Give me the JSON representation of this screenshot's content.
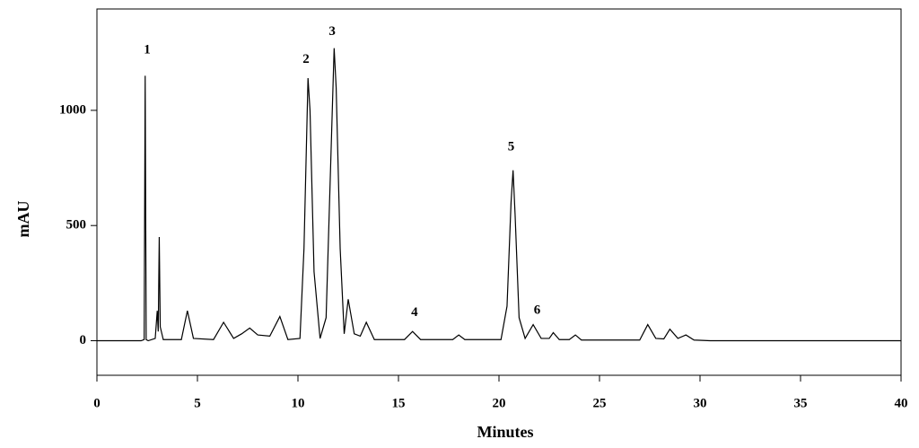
{
  "chart_data": {
    "type": "line",
    "x_label": "Minutes",
    "y_label": "mAU",
    "xlim": [
      0,
      40
    ],
    "ylim": [
      -150,
      1440
    ],
    "xticks": [
      0,
      5,
      10,
      15,
      20,
      25,
      30,
      35,
      40
    ],
    "yticks": [
      0,
      500,
      1000
    ],
    "grid": false,
    "series": [
      {
        "color": "#000000",
        "x": [
          0,
          2.2,
          2.35,
          2.4,
          2.45,
          2.55,
          2.9,
          3.0,
          3.05,
          3.1,
          3.15,
          3.3,
          4.2,
          4.5,
          4.8,
          5.8,
          6.3,
          6.8,
          7.2,
          7.6,
          8.0,
          8.6,
          9.1,
          9.5,
          10.1,
          10.3,
          10.5,
          10.6,
          10.8,
          11.1,
          11.4,
          11.8,
          11.9,
          12.1,
          12.3,
          12.5,
          12.8,
          13.1,
          13.4,
          13.8,
          15.3,
          15.7,
          16.1,
          17.7,
          18.0,
          18.3,
          20.1,
          20.4,
          20.6,
          20.7,
          20.8,
          21.0,
          21.3,
          21.7,
          22.1,
          22.5,
          22.7,
          23.0,
          23.5,
          23.8,
          24.1,
          27.0,
          27.4,
          27.8,
          28.2,
          28.5,
          28.9,
          29.3,
          29.7,
          30.5,
          40
        ],
        "values": [
          0,
          0,
          5,
          1150,
          5,
          0,
          10,
          130,
          40,
          450,
          60,
          5,
          5,
          130,
          10,
          5,
          80,
          10,
          30,
          55,
          25,
          20,
          105,
          5,
          10,
          400,
          1140,
          1000,
          300,
          10,
          100,
          1270,
          1100,
          400,
          30,
          180,
          30,
          20,
          80,
          5,
          5,
          40,
          5,
          5,
          25,
          5,
          5,
          150,
          600,
          740,
          550,
          100,
          10,
          70,
          10,
          10,
          35,
          5,
          5,
          25,
          3,
          3,
          70,
          10,
          8,
          50,
          10,
          25,
          3,
          0,
          0
        ]
      }
    ],
    "annotations": [
      {
        "text": "1",
        "x": 2.5,
        "y": 1260
      },
      {
        "text": "2",
        "x": 10.4,
        "y": 1220
      },
      {
        "text": "3",
        "x": 11.7,
        "y": 1340
      },
      {
        "text": "4",
        "x": 15.8,
        "y": 120
      },
      {
        "text": "5",
        "x": 20.6,
        "y": 840
      },
      {
        "text": "6",
        "x": 21.9,
        "y": 130
      }
    ]
  }
}
